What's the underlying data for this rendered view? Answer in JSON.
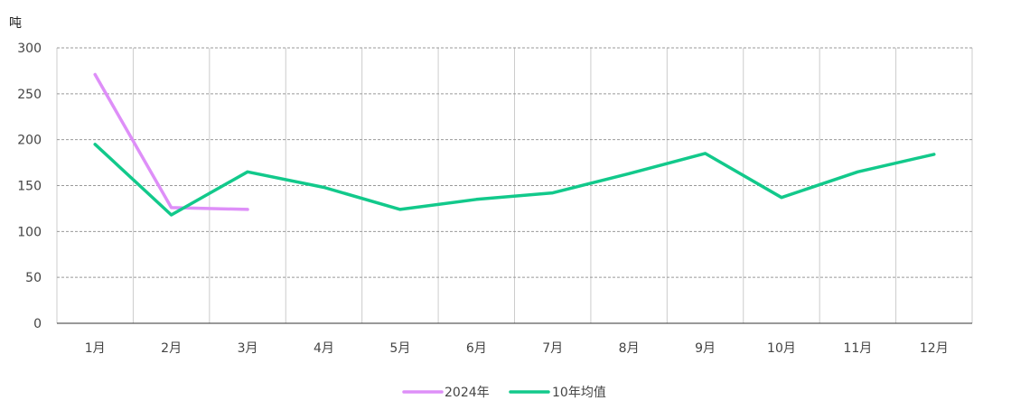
{
  "chart_data": {
    "type": "line",
    "title": "",
    "xlabel": "",
    "ylabel": "吨",
    "categories": [
      "1月",
      "2月",
      "3月",
      "4月",
      "5月",
      "6月",
      "7月",
      "8月",
      "9月",
      "10月",
      "11月",
      "12月"
    ],
    "ylim": [
      0,
      300
    ],
    "yticks": [
      0,
      50,
      100,
      150,
      200,
      250,
      300
    ],
    "grid": true,
    "legend_position": "bottom",
    "series": [
      {
        "name": "2024年",
        "color": "#de8ff8",
        "values": [
          271,
          126,
          124,
          null,
          null,
          null,
          null,
          null,
          null,
          null,
          null,
          null
        ]
      },
      {
        "name": "10年均值",
        "color": "#12c98b",
        "values": [
          195,
          118,
          165,
          148,
          124,
          135,
          142,
          163,
          185,
          137,
          165,
          184
        ]
      }
    ]
  }
}
